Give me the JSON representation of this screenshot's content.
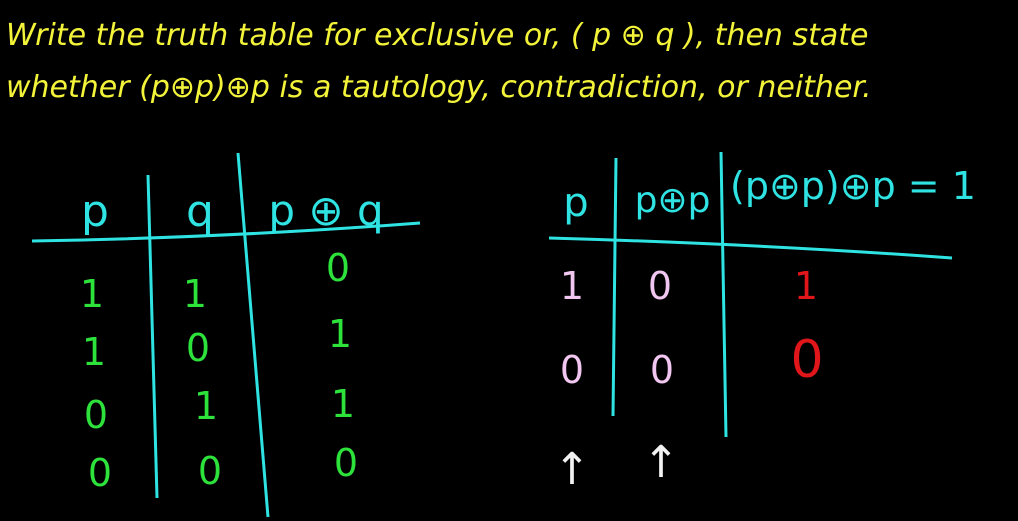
{
  "prompt": {
    "line1": "Write the truth table for exclusive or, ( p ⊕ q ), then state",
    "line2": "whether (p⊕p)⊕p is a tautology, contradiction, or neither."
  },
  "table1": {
    "headers": [
      "p",
      "q",
      "p ⊕ q"
    ],
    "rows": [
      [
        "1",
        "1",
        "0"
      ],
      [
        "1",
        "0",
        "1"
      ],
      [
        "0",
        "1",
        "1"
      ],
      [
        "0",
        "0",
        "0"
      ]
    ]
  },
  "table2": {
    "headers": [
      "p",
      "p⊕p",
      "(p⊕p)⊕p = 1"
    ],
    "rows": [
      [
        "1",
        "0",
        "1"
      ],
      [
        "0",
        "0",
        "0"
      ]
    ],
    "arrows": [
      "↑",
      "↑"
    ]
  },
  "colors": {
    "prompt": "#f3f33a",
    "header": "#2fe3e3",
    "table1_values": "#2ee23c",
    "table2_values": "#f1c6f0",
    "result": "#e0161b"
  }
}
